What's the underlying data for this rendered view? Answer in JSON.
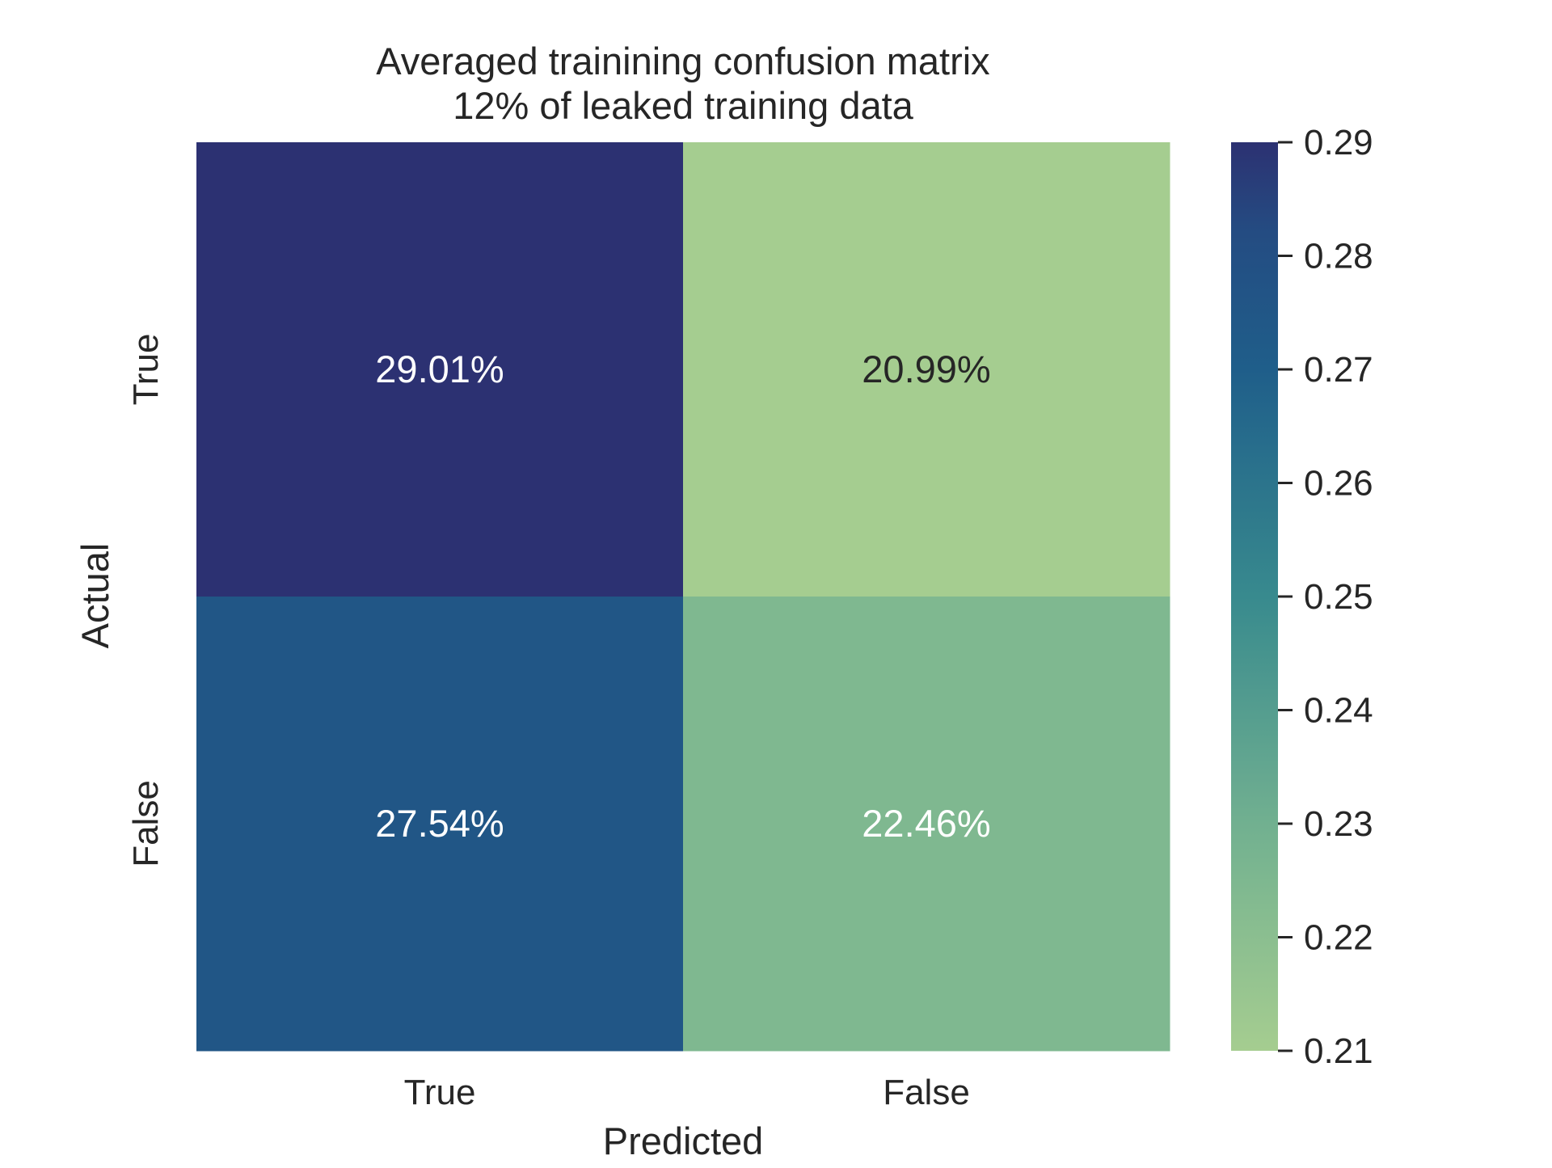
{
  "chart_data": {
    "type": "heatmap",
    "title": "Averaged trainining confusion matrix",
    "subtitle": "12% of leaked training data",
    "xlabel": "Predicted",
    "ylabel": "Actual",
    "x_categories": [
      "True",
      "False"
    ],
    "y_categories": [
      "True",
      "False"
    ],
    "values": [
      [
        0.2901,
        0.2099
      ],
      [
        0.2754,
        0.2246
      ]
    ],
    "cell_labels": [
      [
        "29.01%",
        "20.99%"
      ],
      [
        "27.54%",
        "22.46%"
      ]
    ],
    "colorbar": {
      "min": 0.21,
      "max": 0.29,
      "ticks": [
        "0.29",
        "0.28",
        "0.27",
        "0.26",
        "0.25",
        "0.24",
        "0.23",
        "0.22",
        "0.21"
      ],
      "colormap": "crest"
    },
    "colors": {
      "low": "#a5cd90",
      "high": "#2c3172",
      "label_light": "#ffffff",
      "label_dark": "#262626"
    }
  }
}
